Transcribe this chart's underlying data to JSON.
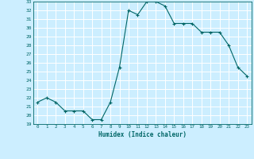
{
  "x": [
    0,
    1,
    2,
    3,
    4,
    5,
    6,
    7,
    8,
    9,
    10,
    11,
    12,
    13,
    14,
    15,
    16,
    17,
    18,
    19,
    20,
    21,
    22,
    23
  ],
  "y": [
    21.5,
    22.0,
    21.5,
    20.5,
    20.5,
    20.5,
    19.5,
    19.5,
    21.5,
    25.5,
    32.0,
    31.5,
    33.0,
    33.0,
    32.5,
    30.5,
    30.5,
    30.5,
    29.5,
    29.5,
    29.5,
    28.0,
    25.5,
    24.5
  ],
  "xlabel": "Humidex (Indice chaleur)",
  "ylim": [
    19,
    33
  ],
  "xlim": [
    -0.5,
    23.5
  ],
  "yticks": [
    19,
    20,
    21,
    22,
    23,
    24,
    25,
    26,
    27,
    28,
    29,
    30,
    31,
    32,
    33
  ],
  "xticks": [
    0,
    1,
    2,
    3,
    4,
    5,
    6,
    7,
    8,
    9,
    10,
    11,
    12,
    13,
    14,
    15,
    16,
    17,
    18,
    19,
    20,
    21,
    22,
    23
  ],
  "line_color": "#006666",
  "marker_color": "#006666",
  "bg_color": "#cceeff",
  "grid_color": "#ffffff",
  "label_color": "#006666"
}
